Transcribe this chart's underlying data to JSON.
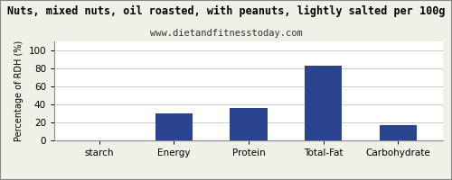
{
  "title": "Nuts, mixed nuts, oil roasted, with peanuts, lightly salted per 100g",
  "subtitle": "www.dietandfitnesstoday.com",
  "categories": [
    "starch",
    "Energy",
    "Protein",
    "Total-Fat",
    "Carbohydrate"
  ],
  "values": [
    0,
    30,
    36,
    83,
    17
  ],
  "bar_color": "#2b4490",
  "ylabel": "Percentage of RDH (%)",
  "ylim": [
    0,
    110
  ],
  "yticks": [
    0,
    20,
    40,
    60,
    80,
    100
  ],
  "title_fontsize": 8.5,
  "subtitle_fontsize": 7.5,
  "ylabel_fontsize": 7,
  "xtick_fontsize": 7.5,
  "ytick_fontsize": 7.5,
  "bg_color": "#f0efe8",
  "plot_bg_color": "#ffffff",
  "border_color": "#888888",
  "grid_color": "#cccccc"
}
